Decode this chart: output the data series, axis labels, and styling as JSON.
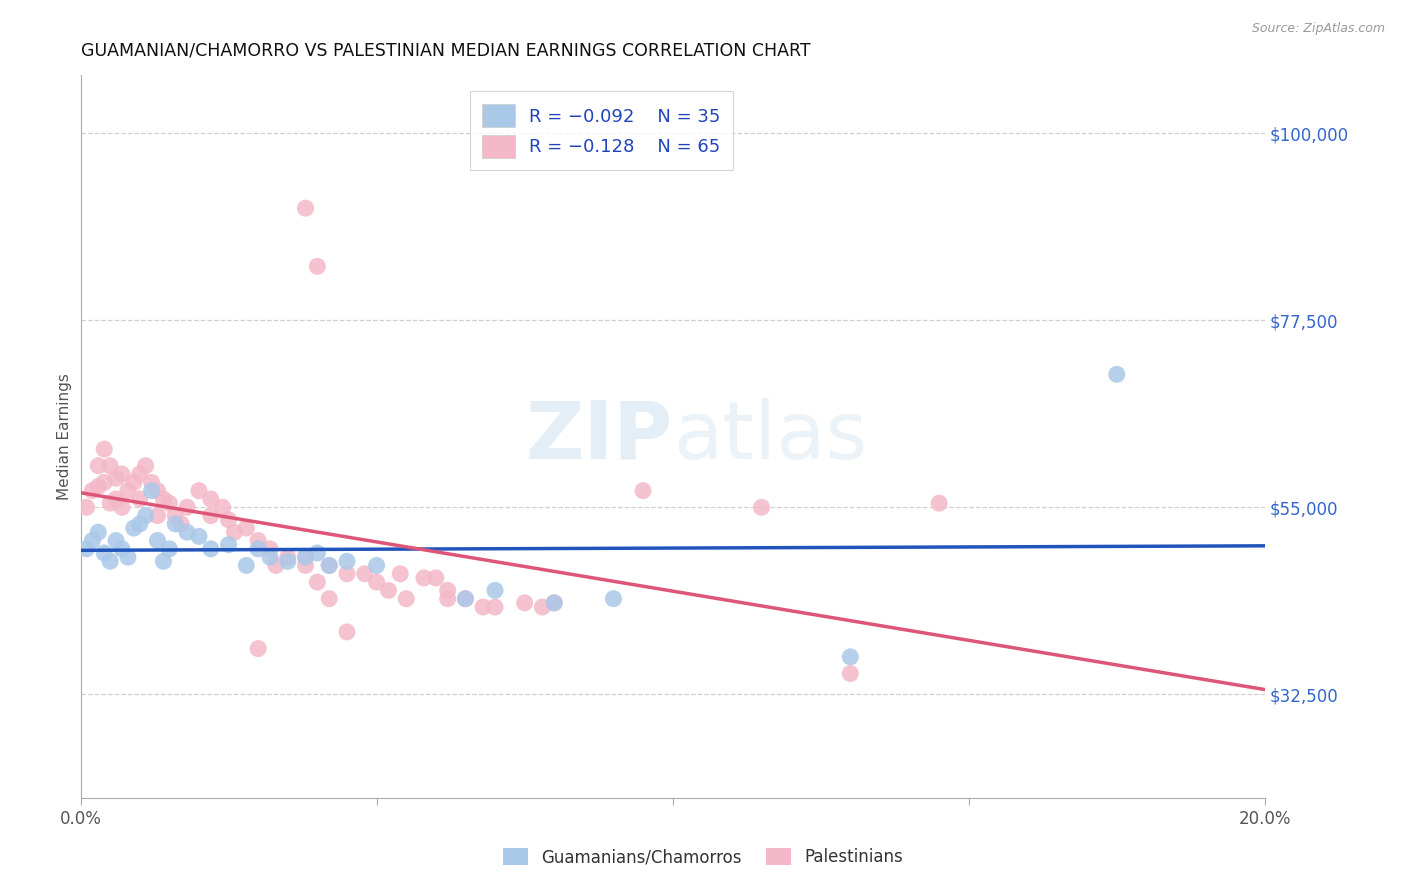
{
  "title": "GUAMANIAN/CHAMORRO VS PALESTINIAN MEDIAN EARNINGS CORRELATION CHART",
  "source": "Source: ZipAtlas.com",
  "ylabel": "Median Earnings",
  "xlim": [
    0.0,
    0.2
  ],
  "ylim": [
    20000,
    107000
  ],
  "background_color": "#ffffff",
  "grid_color": "#d0d0d0",
  "watermark": "ZIPatlas",
  "blue_color": "#aac8e8",
  "pink_color": "#f4b8c8",
  "line_blue": "#2255bb",
  "line_pink": "#dd5577",
  "legend_blue_r": "R = –0.092",
  "legend_blue_n": "N = 35",
  "legend_pink_r": "R = –0.128",
  "legend_pink_n": "N = 65",
  "blue_scatter": [
    [
      0.001,
      50000
    ],
    [
      0.002,
      51000
    ],
    [
      0.003,
      52000
    ],
    [
      0.004,
      49500
    ],
    [
      0.005,
      48500
    ],
    [
      0.006,
      51000
    ],
    [
      0.007,
      50000
    ],
    [
      0.008,
      49000
    ],
    [
      0.009,
      52500
    ],
    [
      0.01,
      53000
    ],
    [
      0.011,
      54000
    ],
    [
      0.012,
      57000
    ],
    [
      0.013,
      51000
    ],
    [
      0.014,
      48500
    ],
    [
      0.015,
      50000
    ],
    [
      0.016,
      53000
    ],
    [
      0.018,
      52000
    ],
    [
      0.02,
      51500
    ],
    [
      0.022,
      50000
    ],
    [
      0.025,
      50500
    ],
    [
      0.028,
      48000
    ],
    [
      0.03,
      50000
    ],
    [
      0.032,
      49000
    ],
    [
      0.035,
      48500
    ],
    [
      0.038,
      49000
    ],
    [
      0.04,
      49500
    ],
    [
      0.042,
      48000
    ],
    [
      0.045,
      48500
    ],
    [
      0.05,
      48000
    ],
    [
      0.065,
      44000
    ],
    [
      0.07,
      45000
    ],
    [
      0.08,
      43500
    ],
    [
      0.09,
      44000
    ],
    [
      0.13,
      37000
    ],
    [
      0.175,
      71000
    ]
  ],
  "pink_scatter": [
    [
      0.001,
      55000
    ],
    [
      0.002,
      57000
    ],
    [
      0.003,
      57500
    ],
    [
      0.003,
      60000
    ],
    [
      0.004,
      62000
    ],
    [
      0.004,
      58000
    ],
    [
      0.005,
      55500
    ],
    [
      0.005,
      60000
    ],
    [
      0.006,
      56000
    ],
    [
      0.006,
      58500
    ],
    [
      0.007,
      59000
    ],
    [
      0.007,
      55000
    ],
    [
      0.008,
      57000
    ],
    [
      0.009,
      58000
    ],
    [
      0.01,
      56000
    ],
    [
      0.01,
      59000
    ],
    [
      0.011,
      60000
    ],
    [
      0.012,
      58000
    ],
    [
      0.013,
      57000
    ],
    [
      0.013,
      54000
    ],
    [
      0.014,
      56000
    ],
    [
      0.015,
      55500
    ],
    [
      0.016,
      54000
    ],
    [
      0.017,
      53000
    ],
    [
      0.018,
      55000
    ],
    [
      0.02,
      57000
    ],
    [
      0.022,
      54000
    ],
    [
      0.022,
      56000
    ],
    [
      0.024,
      55000
    ],
    [
      0.025,
      53500
    ],
    [
      0.026,
      52000
    ],
    [
      0.028,
      52500
    ],
    [
      0.03,
      51000
    ],
    [
      0.03,
      38000
    ],
    [
      0.032,
      50000
    ],
    [
      0.033,
      48000
    ],
    [
      0.035,
      49000
    ],
    [
      0.038,
      49000
    ],
    [
      0.038,
      48000
    ],
    [
      0.038,
      91000
    ],
    [
      0.04,
      84000
    ],
    [
      0.04,
      46000
    ],
    [
      0.042,
      48000
    ],
    [
      0.042,
      44000
    ],
    [
      0.045,
      47000
    ],
    [
      0.045,
      40000
    ],
    [
      0.048,
      47000
    ],
    [
      0.05,
      46000
    ],
    [
      0.052,
      45000
    ],
    [
      0.054,
      47000
    ],
    [
      0.055,
      44000
    ],
    [
      0.058,
      46500
    ],
    [
      0.06,
      46500
    ],
    [
      0.062,
      45000
    ],
    [
      0.062,
      44000
    ],
    [
      0.065,
      44000
    ],
    [
      0.068,
      43000
    ],
    [
      0.07,
      43000
    ],
    [
      0.075,
      43500
    ],
    [
      0.078,
      43000
    ],
    [
      0.08,
      43500
    ],
    [
      0.095,
      57000
    ],
    [
      0.115,
      55000
    ],
    [
      0.13,
      35000
    ],
    [
      0.145,
      55500
    ]
  ]
}
